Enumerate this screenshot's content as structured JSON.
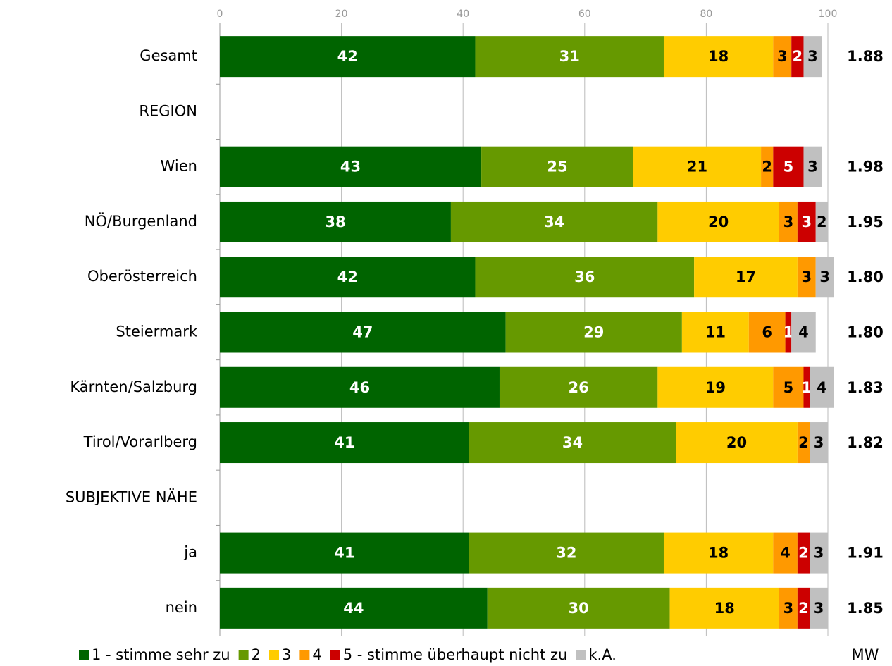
{
  "chart_data": {
    "type": "stacked-barh",
    "categories": [
      "Gesamt",
      "REGION",
      "Wien",
      "NÖ/Burgenland",
      "Oberösterreich",
      "Steiermark",
      "Kärnten/Salzburg",
      "Tirol/Vorarlberg",
      "SUBJEKTIVE NÄHE",
      "ja",
      "nein"
    ],
    "series": [
      {
        "name": "1 - stimme sehr zu",
        "color": "#006400",
        "values": [
          42,
          null,
          43,
          38,
          42,
          47,
          46,
          41,
          null,
          41,
          44
        ]
      },
      {
        "name": "2",
        "color": "#669900",
        "values": [
          31,
          null,
          25,
          34,
          36,
          29,
          26,
          34,
          null,
          32,
          30
        ]
      },
      {
        "name": "3",
        "color": "#ffcc00",
        "values": [
          18,
          null,
          21,
          20,
          17,
          11,
          19,
          20,
          null,
          18,
          18
        ]
      },
      {
        "name": "4",
        "color": "#ff9900",
        "values": [
          3,
          null,
          2,
          3,
          3,
          6,
          5,
          2,
          null,
          4,
          3
        ]
      },
      {
        "name": "5 - stimme überhaupt nicht zu",
        "color": "#cc0000",
        "values": [
          2,
          null,
          5,
          3,
          null,
          1,
          1,
          null,
          null,
          2,
          2
        ]
      },
      {
        "name": "k.A.",
        "color": "#c0c0c0",
        "values": [
          3,
          null,
          3,
          2,
          3,
          4,
          4,
          3,
          null,
          3,
          3
        ]
      }
    ],
    "mw": {
      "name": "MW",
      "values": [
        1.88,
        null,
        1.98,
        1.95,
        1.8,
        1.8,
        1.83,
        1.82,
        null,
        1.91,
        1.85
      ],
      "value_labels": [
        "1.88",
        null,
        "1.98",
        "1.95",
        "1.80",
        "1.80",
        "1.83",
        "1.82",
        null,
        "1.91",
        "1.85"
      ]
    },
    "xlim": [
      0,
      100
    ],
    "xticks": [
      0,
      20,
      40,
      60,
      80,
      100
    ],
    "grid": true
  }
}
